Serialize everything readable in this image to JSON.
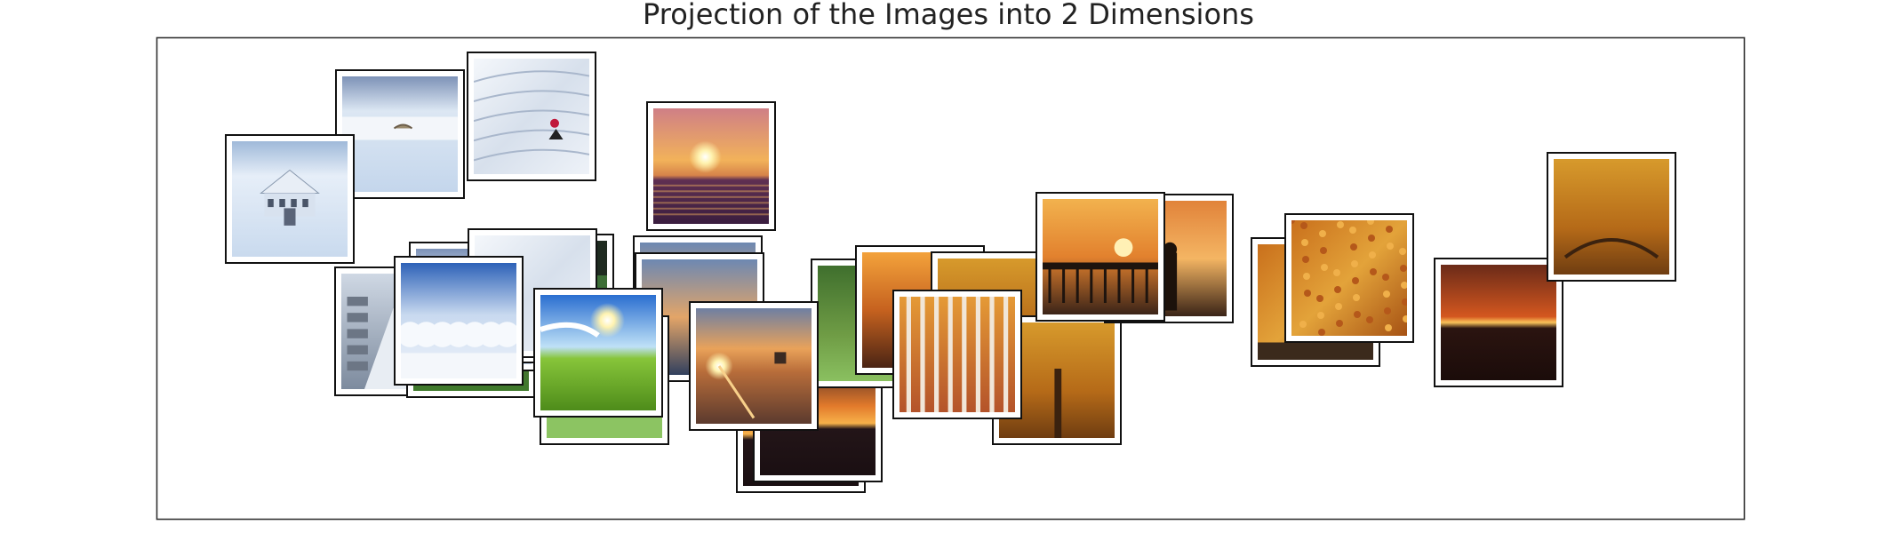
{
  "chart_data": {
    "type": "scatter",
    "title": "Projection of the Images into 2 Dimensions",
    "xlabel": "",
    "ylabel": "",
    "axes_visible": false,
    "grid": false,
    "marker": "image thumbnail",
    "points": [
      {
        "image": "sunset-ocean",
        "x": 0.53,
        "y": 0.63
      },
      {
        "image": "snow-field-car",
        "x": 0.12,
        "y": 0.43
      },
      {
        "image": "green-lawn-trees",
        "x": 0.35,
        "y": 0.43
      },
      {
        "image": "snow-footprints",
        "x": 0.56,
        "y": 0.38
      },
      {
        "image": "snowy-town-road",
        "x": 0.33,
        "y": 0.4
      },
      {
        "image": "frost-trees",
        "x": 0.08,
        "y": 0.28
      },
      {
        "image": "grass-sky-sun",
        "x": 0.24,
        "y": 0.39
      },
      {
        "image": "snow-white-trees",
        "x": 0.21,
        "y": 0.32
      },
      {
        "image": "green-trees-park",
        "x": 0.42,
        "y": 0.43
      },
      {
        "image": "sunset-horizon",
        "x": 0.85,
        "y": 0.34
      },
      {
        "image": "autumn-tree",
        "x": 0.97,
        "y": 0.53
      },
      {
        "image": "sunset-sea-orange",
        "x": 0.82,
        "y": 0.24
      },
      {
        "image": "sunset-beach-flare",
        "x": 0.38,
        "y": 0.34
      },
      {
        "image": "birch-grove",
        "x": 0.5,
        "y": 0.37
      },
      {
        "image": "ocean-dusk",
        "x": 0.4,
        "y": 0.38
      },
      {
        "image": "autumn-canopy",
        "x": 0.69,
        "y": 0.5
      },
      {
        "image": "snowed-in-house",
        "x": 0.18,
        "y": 0.67
      },
      {
        "image": "snow-hillside",
        "x": 0.28,
        "y": 0.31
      },
      {
        "image": "sunset-pier",
        "x": 0.58,
        "y": 0.56
      },
      {
        "image": "sunset-ocean-vivid",
        "x": 0.62,
        "y": 0.58
      },
      {
        "image": "autumn-leaves",
        "x": 0.77,
        "y": 0.36
      },
      {
        "image": "autumn-leaves-ground",
        "x": 0.35,
        "y": 0.74
      },
      {
        "image": "sunset-silhouette",
        "x": 0.61,
        "y": 0.6
      },
      {
        "image": "sunset-sea",
        "x": 0.43,
        "y": 0.62
      },
      {
        "image": "snow-hill-sled",
        "x": 0.61,
        "y": 0.7
      },
      {
        "image": "snow-fence-bird",
        "x": 0.55,
        "y": 0.54
      },
      {
        "image": "sunset-water-orange",
        "x": 0.64,
        "y": 0.5
      },
      {
        "image": "sunset-pier-silhouette",
        "x": 0.64,
        "y": 0.53
      },
      {
        "image": "autumn-leaves-ground-2",
        "x": 0.75,
        "y": 0.5
      },
      {
        "image": "sunset-water-sun",
        "x": 0.28,
        "y": 0.46
      },
      {
        "image": "autumn-tree-sun",
        "x": 0.64,
        "y": 0.56
      }
    ]
  }
}
